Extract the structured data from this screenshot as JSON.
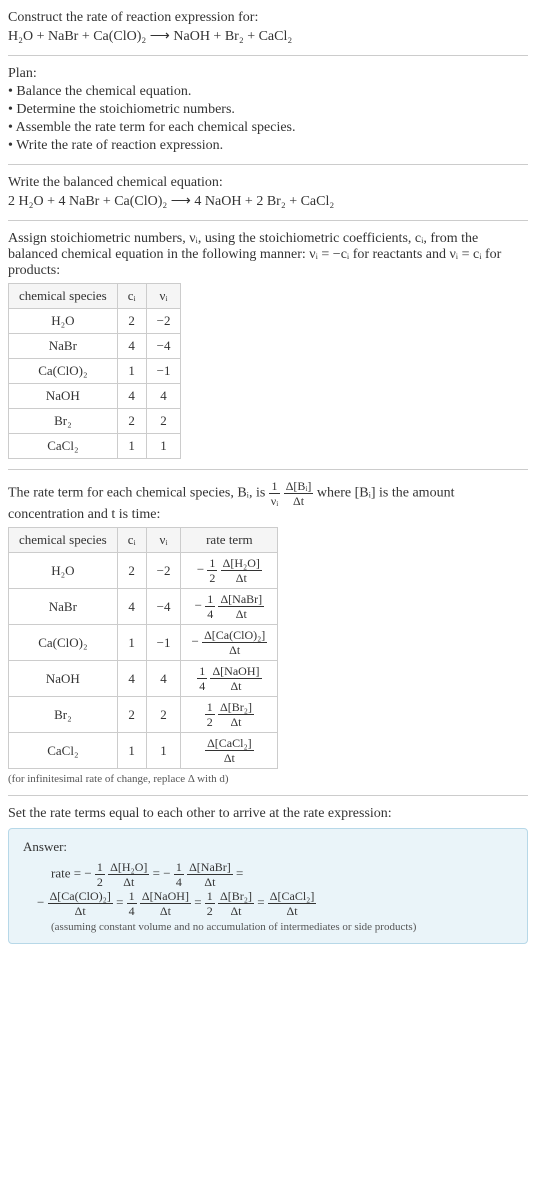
{
  "intro": {
    "line1": "Construct the rate of reaction expression for:",
    "equation": "H₂O + NaBr + Ca(ClO)₂ ⟶ NaOH + Br₂ + CaCl₂"
  },
  "plan": {
    "heading": "Plan:",
    "items": [
      "• Balance the chemical equation.",
      "• Determine the stoichiometric numbers.",
      "• Assemble the rate term for each chemical species.",
      "• Write the rate of reaction expression."
    ]
  },
  "balanced": {
    "line": "Write the balanced chemical equation:",
    "equation": "2 H₂O + 4 NaBr + Ca(ClO)₂ ⟶ 4 NaOH + 2 Br₂ + CaCl₂"
  },
  "assign": {
    "para": "Assign stoichiometric numbers, νᵢ, using the stoichiometric coefficients, cᵢ, from the balanced chemical equation in the following manner: νᵢ = −cᵢ for reactants and νᵢ = cᵢ for products:",
    "table": {
      "headers": [
        "chemical species",
        "cᵢ",
        "νᵢ"
      ],
      "rows": [
        [
          "H₂O",
          "2",
          "−2"
        ],
        [
          "NaBr",
          "4",
          "−4"
        ],
        [
          "Ca(ClO)₂",
          "1",
          "−1"
        ],
        [
          "NaOH",
          "4",
          "4"
        ],
        [
          "Br₂",
          "2",
          "2"
        ],
        [
          "CaCl₂",
          "1",
          "1"
        ]
      ]
    }
  },
  "rateterm": {
    "pre": "The rate term for each chemical species, Bᵢ, is ",
    "frac1": {
      "num": "1",
      "den": "νᵢ"
    },
    "frac2": {
      "num": "Δ[Bᵢ]",
      "den": "Δt"
    },
    "post": " where [Bᵢ] is the amount concentration and t is time:",
    "table": {
      "headers": [
        "chemical species",
        "cᵢ",
        "νᵢ",
        "rate term"
      ],
      "rows": [
        {
          "sp": "H₂O",
          "c": "2",
          "v": "−2",
          "neg": "− ",
          "coef": {
            "num": "1",
            "den": "2"
          },
          "delta": {
            "num": "Δ[H₂O]",
            "den": "Δt"
          }
        },
        {
          "sp": "NaBr",
          "c": "4",
          "v": "−4",
          "neg": "− ",
          "coef": {
            "num": "1",
            "den": "4"
          },
          "delta": {
            "num": "Δ[NaBr]",
            "den": "Δt"
          }
        },
        {
          "sp": "Ca(ClO)₂",
          "c": "1",
          "v": "−1",
          "neg": "− ",
          "coef": null,
          "delta": {
            "num": "Δ[Ca(ClO)₂]",
            "den": "Δt"
          }
        },
        {
          "sp": "NaOH",
          "c": "4",
          "v": "4",
          "neg": "",
          "coef": {
            "num": "1",
            "den": "4"
          },
          "delta": {
            "num": "Δ[NaOH]",
            "den": "Δt"
          }
        },
        {
          "sp": "Br₂",
          "c": "2",
          "v": "2",
          "neg": "",
          "coef": {
            "num": "1",
            "den": "2"
          },
          "delta": {
            "num": "Δ[Br₂]",
            "den": "Δt"
          }
        },
        {
          "sp": "CaCl₂",
          "c": "1",
          "v": "1",
          "neg": "",
          "coef": null,
          "delta": {
            "num": "Δ[CaCl₂]",
            "den": "Δt"
          }
        }
      ]
    },
    "note": "(for infinitesimal rate of change, replace Δ with d)"
  },
  "set": {
    "line": "Set the rate terms equal to each other to arrive at the rate expression:"
  },
  "answer": {
    "label": "Answer:",
    "rate_eq_label": "rate = ",
    "terms": [
      {
        "neg": "− ",
        "coef": {
          "num": "1",
          "den": "2"
        },
        "delta": {
          "num": "Δ[H₂O]",
          "den": "Δt"
        }
      },
      {
        "neg": "− ",
        "coef": {
          "num": "1",
          "den": "4"
        },
        "delta": {
          "num": "Δ[NaBr]",
          "den": "Δt"
        }
      },
      {
        "neg": "− ",
        "coef": null,
        "delta": {
          "num": "Δ[Ca(ClO)₂]",
          "den": "Δt"
        }
      },
      {
        "neg": "",
        "coef": {
          "num": "1",
          "den": "4"
        },
        "delta": {
          "num": "Δ[NaOH]",
          "den": "Δt"
        }
      },
      {
        "neg": "",
        "coef": {
          "num": "1",
          "den": "2"
        },
        "delta": {
          "num": "Δ[Br₂]",
          "den": "Δt"
        }
      },
      {
        "neg": "",
        "coef": null,
        "delta": {
          "num": "Δ[CaCl₂]",
          "den": "Δt"
        }
      }
    ],
    "assume": "(assuming constant volume and no accumulation of intermediates or side products)"
  }
}
